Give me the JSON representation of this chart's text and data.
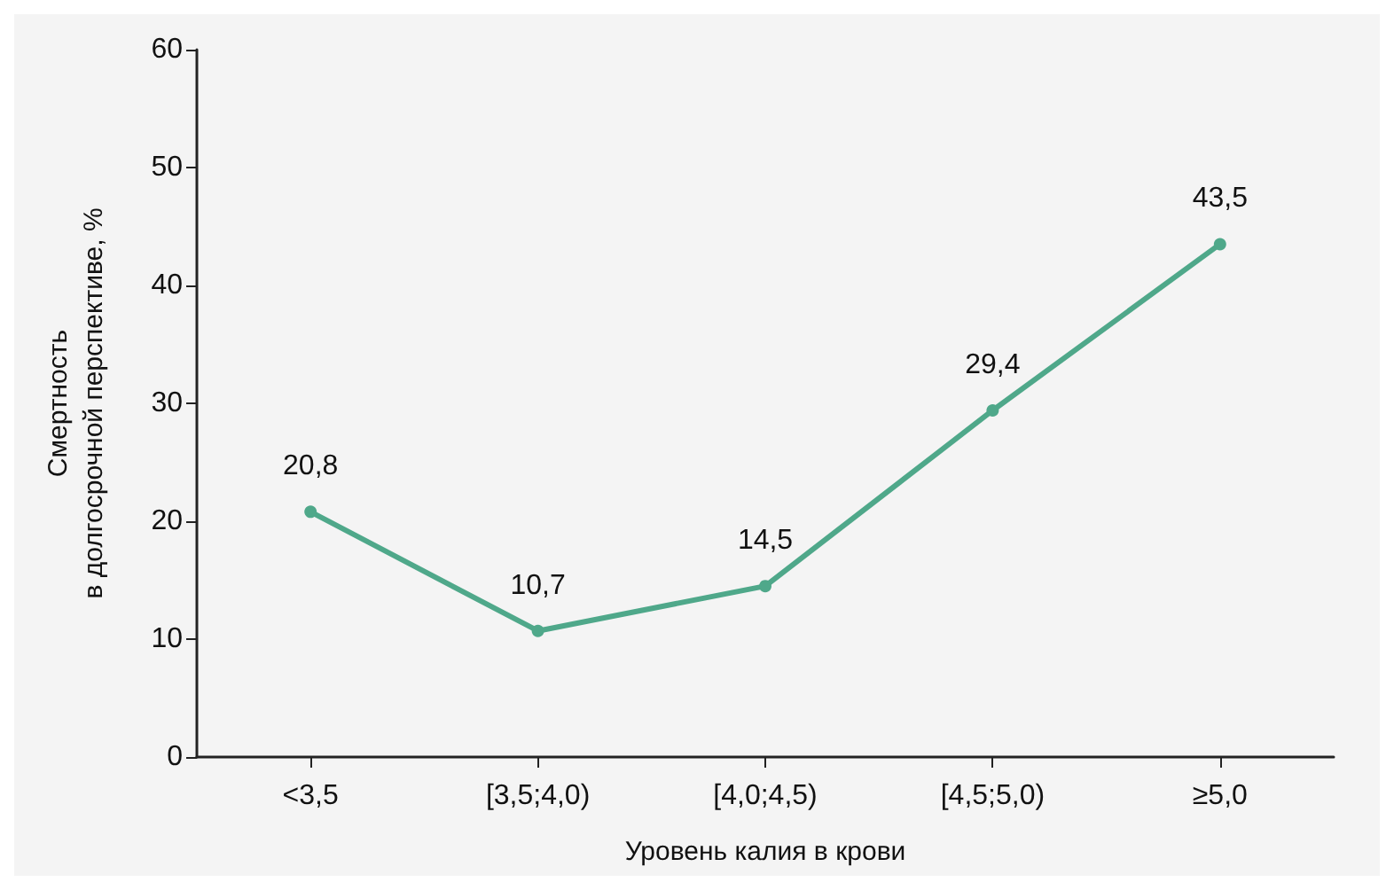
{
  "chart_data": {
    "type": "line",
    "xlabel": "Уровень калия в крови",
    "ylabel": "Смертность\nв долгосрочной перспективе, %",
    "categories": [
      "<3,5",
      "[3,5;4,0)",
      "[4,0;4,5)",
      "[4,5;5,0)",
      "≥5,0"
    ],
    "values": [
      20.8,
      10.7,
      14.5,
      29.4,
      43.5
    ],
    "value_labels": [
      "20,8",
      "10,7",
      "14,5",
      "29,4",
      "43,5"
    ],
    "color": "#4fa88a",
    "marker": "circle",
    "line_style": "solid",
    "ylim": [
      0,
      60
    ],
    "yticks": [
      0,
      10,
      20,
      30,
      40,
      50,
      60
    ]
  }
}
